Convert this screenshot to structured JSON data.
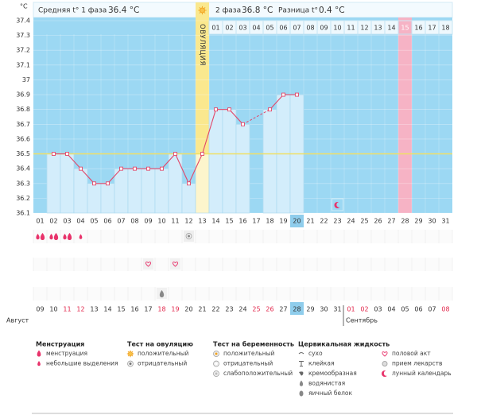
{
  "header": {
    "unit": "°C",
    "phase1_label": "Средняя t° 1 фаза",
    "phase1_value": "36.4 °C",
    "phase2_label": "2 фаза",
    "phase2_value": "36.8 °C",
    "diff_label": "Разница t°",
    "diff_value": "0.4 °C"
  },
  "chart_data": {
    "type": "line",
    "categories": [
      "01",
      "02",
      "03",
      "04",
      "05",
      "06",
      "07",
      "08",
      "09",
      "10",
      "11",
      "12",
      "13",
      "14",
      "15",
      "16",
      "17",
      "18",
      "19",
      "20",
      "21",
      "22",
      "23",
      "24",
      "25",
      "26",
      "27",
      "28",
      "29",
      "30",
      "31"
    ],
    "values": [
      null,
      36.5,
      36.5,
      36.4,
      36.3,
      36.3,
      36.4,
      36.4,
      36.4,
      36.4,
      36.5,
      36.3,
      36.5,
      36.8,
      36.8,
      36.7,
      null,
      36.8,
      36.9,
      36.9,
      null,
      null,
      null,
      null,
      null,
      null,
      null,
      null,
      null,
      null,
      null
    ],
    "ylim": [
      36.1,
      37.4
    ],
    "yticks": [
      36.1,
      36.2,
      36.3,
      36.4,
      36.5,
      36.6,
      36.7,
      36.8,
      36.9,
      37,
      37.1,
      37.2,
      37.3,
      37.4
    ],
    "line_color": "#e2486a",
    "bar_color": "#d3edfb",
    "background": "#9cd8f3",
    "coverline": 36.5,
    "coverline_color": "#f0df66",
    "grid": true
  },
  "ovulation_label": "ОВУЛЯЦИЯ",
  "phase2_days": [
    "01",
    "02",
    "03",
    "04",
    "05",
    "06",
    "07",
    "08",
    "09",
    "10",
    "11",
    "12",
    "13",
    "14",
    "15",
    "16",
    "17",
    "18"
  ],
  "dates": [
    {
      "text": "09",
      "weekend": false
    },
    {
      "text": "10",
      "weekend": false
    },
    {
      "text": "11",
      "weekend": true
    },
    {
      "text": "12",
      "weekend": true
    },
    {
      "text": "13",
      "weekend": false
    },
    {
      "text": "14",
      "weekend": false
    },
    {
      "text": "15",
      "weekend": false
    },
    {
      "text": "16",
      "weekend": false
    },
    {
      "text": "17",
      "weekend": false
    },
    {
      "text": "18",
      "weekend": true
    },
    {
      "text": "19",
      "weekend": true
    },
    {
      "text": "20",
      "weekend": false
    },
    {
      "text": "21",
      "weekend": false
    },
    {
      "text": "22",
      "weekend": false
    },
    {
      "text": "23",
      "weekend": false
    },
    {
      "text": "24",
      "weekend": false
    },
    {
      "text": "25",
      "weekend": true
    },
    {
      "text": "26",
      "weekend": true
    },
    {
      "text": "27",
      "weekend": false
    },
    {
      "text": "28",
      "weekend": false
    },
    {
      "text": "29",
      "weekend": false
    },
    {
      "text": "30",
      "weekend": false
    },
    {
      "text": "31",
      "weekend": false
    },
    {
      "text": "01",
      "weekend": true
    },
    {
      "text": "02",
      "weekend": true
    },
    {
      "text": "03",
      "weekend": false
    },
    {
      "text": "04",
      "weekend": false
    },
    {
      "text": "05",
      "weekend": false
    },
    {
      "text": "06",
      "weekend": false
    },
    {
      "text": "07",
      "weekend": false
    },
    {
      "text": "08",
      "weekend": true
    }
  ],
  "months": [
    "Август",
    "Сентябрь"
  ],
  "legend": [
    {
      "title": "Менструация",
      "items": [
        "менструация",
        "небольшие выделения"
      ]
    },
    {
      "title": "Тест на овуляцию",
      "items": [
        "положительный",
        "отрицательный"
      ]
    },
    {
      "title": "Тест на беременность",
      "items": [
        "положительный",
        "отрицательный",
        "слабоположительный"
      ]
    },
    {
      "title": "Цервикальная жидкость",
      "items": [
        "сухо",
        "клейкая",
        "кремообразная",
        "водянистая",
        "яичный белок"
      ]
    },
    {
      "items": [
        "половой акт",
        "прием лекарств",
        "лунный календарь"
      ]
    }
  ]
}
